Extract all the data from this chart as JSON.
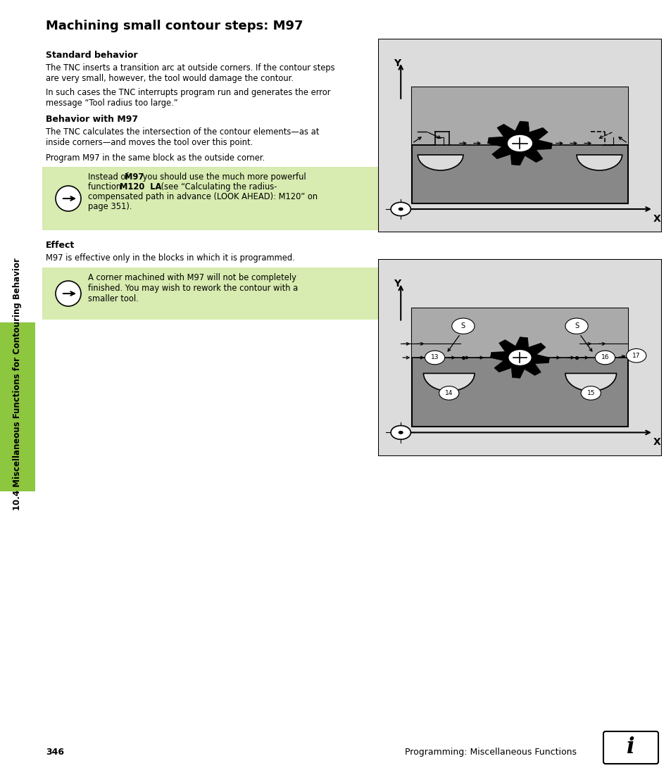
{
  "title": "Machining small contour steps: M97",
  "bg_color": "#ffffff",
  "diagram_bg": "#dcdcdc",
  "workpiece_dark": "#888888",
  "workpiece_light": "#aaaaaa",
  "green_bg": "#d8ebb0",
  "sidebar_green": "#8dc63f",
  "sidebar_text": "10.4 Miscellaneous Functions for Contouring Behavior",
  "page_num": "346",
  "footer_text": "Programming: Miscellaneous Functions",
  "section1_title": "Standard behavior",
  "section1_text1": "The TNC inserts a transition arc at outside corners. If the contour steps\nare very small, however, the tool would damage the contour.",
  "section1_text2": "In such cases the TNC interrupts program run and generates the error\nmessage “Tool radius too large.”",
  "section2_title": "Behavior with M97",
  "section2_text": "The TNC calculates the intersection of the contour elements—as at\ninside corners—and moves the tool over this point.",
  "section2_text2": "Program M97 in the same block as the outside corner.",
  "section3_title": "Effect",
  "section3_text": "M97 is effective only in the blocks in which it is programmed.",
  "note2_text": "A corner machined with M97 will not be completely\nfinished. You may wish to rework the contour with a\nsmaller tool."
}
